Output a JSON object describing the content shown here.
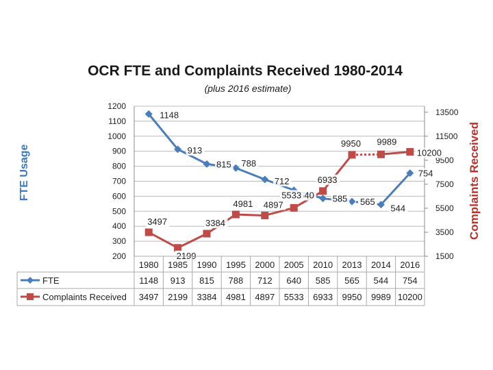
{
  "chart_data": {
    "type": "line",
    "title": "OCR FTE and Complaints Received 1980-2014",
    "subtitle": "(plus 2016 estimate)",
    "categories": [
      "1980",
      "1985",
      "1990",
      "1995",
      "2000",
      "2005",
      "2010",
      "2013",
      "2014",
      "2016"
    ],
    "y_left": {
      "label": "FTE Usage",
      "range": [
        200,
        1200
      ],
      "ticks": [
        "200",
        "300",
        "400",
        "500",
        "600",
        "700",
        "800",
        "900",
        "1000",
        "1100",
        "1200"
      ]
    },
    "y_right": {
      "label": "Complaints Received",
      "range": [
        1500,
        14000
      ],
      "ticks": [
        "1500",
        "3500",
        "5500",
        "7500",
        "9500",
        "11500",
        "13500"
      ]
    },
    "grid": true,
    "legend": "table-below",
    "series": [
      {
        "name": "FTE",
        "axis": "left",
        "color": "#4a7ebb",
        "marker": "diamond",
        "values": [
          1148,
          913,
          815,
          788,
          712,
          640,
          585,
          565,
          544,
          754
        ],
        "labels": [
          "1148",
          "913",
          "815",
          "788",
          "712",
          "640",
          "585",
          "565",
          "544",
          "754"
        ],
        "dotted_segment": [
          7,
          8
        ]
      },
      {
        "name": "Complaints Received",
        "axis": "right",
        "color": "#be4b48",
        "marker": "square",
        "values": [
          3497,
          2199,
          3384,
          4981,
          4897,
          5533,
          6933,
          9950,
          9989,
          10200
        ],
        "labels": [
          "3497",
          "2199",
          "3384",
          "4981",
          "4897",
          "5533",
          "6933",
          "9950",
          "9989",
          "10200"
        ],
        "dotted_segment": [
          7,
          8
        ]
      }
    ]
  }
}
